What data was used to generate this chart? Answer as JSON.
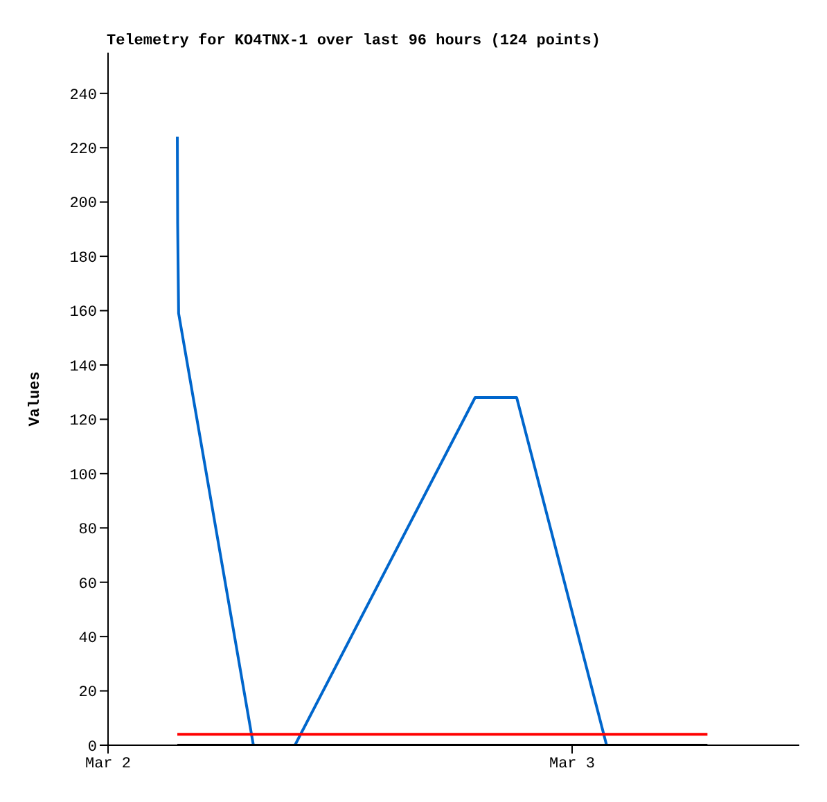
{
  "chart_data": {
    "type": "line",
    "title": "Telemetry for KO4TNX-1 over last 96 hours (124 points)",
    "ylabel": "Values",
    "xlim": [
      "--03-02T00:00",
      "--03-03T11:45"
    ],
    "xticks": [
      {
        "value": "--03-02",
        "label": "Mar 2"
      },
      {
        "value": "--03-03",
        "label": "Mar 3"
      }
    ],
    "ylim": [
      0,
      255
    ],
    "yticks": [
      0,
      20,
      40,
      60,
      80,
      100,
      120,
      140,
      160,
      180,
      200,
      220,
      240
    ],
    "marker": "none",
    "line_style": "solid",
    "series": [
      {
        "color": "#0066cc",
        "x": [
          "--03-02T03:35",
          "--03-02T03:36",
          "--03-02T03:39",
          "--03-02T07:31",
          "--03-02T09:40",
          "--03-02T18:59",
          "--03-02T21:08",
          "--03-03T01:47"
        ],
        "values": [
          224,
          192,
          159,
          0,
          0,
          128,
          128,
          0
        ]
      },
      {
        "color": "#ff0000",
        "x": [
          "--03-02T03:35",
          "--03-03T07:00"
        ],
        "values": [
          4,
          4
        ]
      },
      {
        "color": "#000000",
        "x": [
          "--03-02T03:35",
          "--03-03T07:00"
        ],
        "values": [
          0,
          0
        ]
      }
    ]
  }
}
